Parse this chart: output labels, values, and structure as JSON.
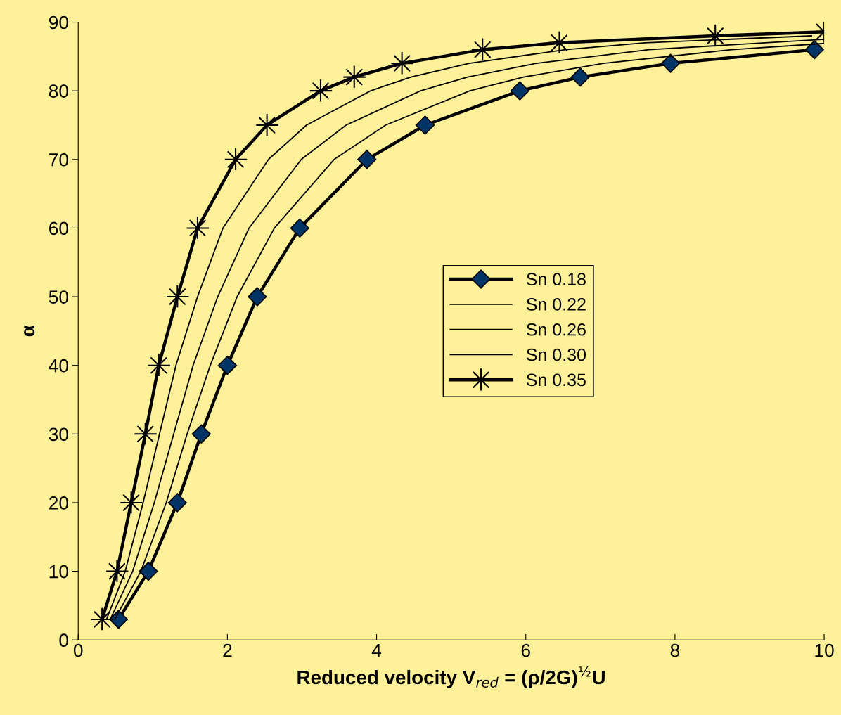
{
  "chart_data": {
    "type": "line",
    "xlabel": "Reduced velocity V$_{red}$ = (ρ/2G)$^{½}$U",
    "ylabel": "α",
    "xlim": [
      0,
      10
    ],
    "ylim": [
      0,
      90
    ],
    "xticks": [
      0,
      2,
      4,
      6,
      8,
      10
    ],
    "yticks": [
      0,
      10,
      20,
      30,
      40,
      50,
      60,
      70,
      80,
      90
    ],
    "grid": false,
    "legend": "center",
    "series": [
      {
        "name": "Sn 0.18",
        "color": "#000000",
        "marker": "diamond",
        "x": [
          0.54,
          0.94,
          1.33,
          1.65,
          2.0,
          2.4,
          2.97,
          3.87,
          4.65,
          5.92,
          6.73,
          7.94,
          9.87
        ],
        "values": [
          3,
          10,
          20,
          30,
          40,
          50,
          60,
          70,
          75,
          80,
          82,
          84,
          86
        ]
      },
      {
        "name": "Sn 0.22",
        "color": "#000000",
        "marker": "none",
        "x": [
          0.49,
          0.84,
          1.18,
          1.46,
          1.77,
          2.13,
          2.63,
          3.43,
          4.12,
          5.25,
          5.97,
          7.04,
          8.76,
          10
        ],
        "values": [
          3,
          10,
          20,
          30,
          40,
          50,
          60,
          70,
          75,
          80,
          82,
          84,
          86,
          86.9
        ]
      },
      {
        "name": "Sn 0.26",
        "color": "#000000",
        "marker": "none",
        "x": [
          0.43,
          0.73,
          1.02,
          1.28,
          1.54,
          1.87,
          2.29,
          2.99,
          3.59,
          4.59,
          5.22,
          6.14,
          7.65,
          10
        ],
        "values": [
          3,
          10,
          20,
          30,
          40,
          50,
          60,
          70,
          75,
          80,
          82,
          84,
          86,
          87.5
        ]
      },
      {
        "name": "Sn 0.30",
        "color": "#000000",
        "marker": "none",
        "x": [
          0.38,
          0.63,
          0.87,
          1.09,
          1.31,
          1.6,
          1.94,
          2.55,
          3.06,
          3.92,
          4.46,
          5.24,
          6.53,
          7.6,
          9.83
        ],
        "values": [
          3,
          10,
          20,
          30,
          40,
          50,
          60,
          70,
          75,
          80,
          82,
          84,
          86,
          87,
          88
        ]
      },
      {
        "name": "Sn 0.35",
        "color": "#000000",
        "marker": "cross",
        "x": [
          0.32,
          0.52,
          0.71,
          0.9,
          1.08,
          1.33,
          1.6,
          2.11,
          2.53,
          3.25,
          3.7,
          4.34,
          5.42,
          6.45,
          8.54,
          10
        ],
        "values": [
          3,
          10,
          20,
          30,
          40,
          50,
          60,
          70,
          75,
          80,
          82,
          84,
          86,
          87,
          88,
          88.6
        ]
      }
    ]
  }
}
